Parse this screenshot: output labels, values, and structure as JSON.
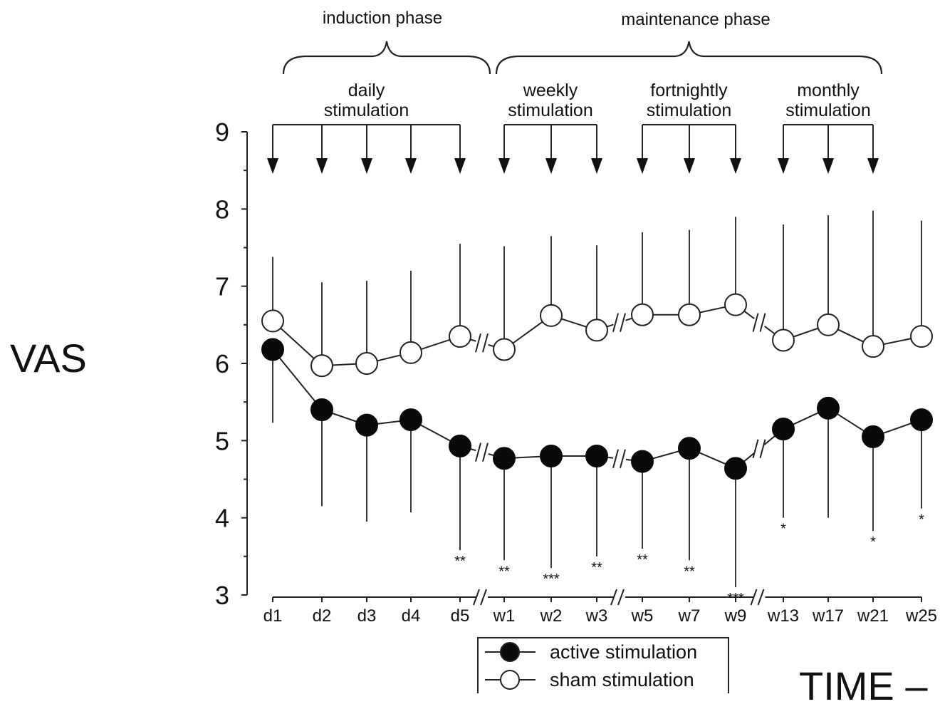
{
  "y_axis_label": "VAS",
  "x_axis_label": "TIME –",
  "phases": [
    {
      "label": "induction phase"
    },
    {
      "label": "maintenance phase"
    }
  ],
  "stimulation_groups": [
    {
      "label_line1": "daily",
      "label_line2": "stimulation",
      "timepoints": [
        "d1",
        "d2",
        "d3",
        "d4",
        "d5"
      ]
    },
    {
      "label_line1": "weekly",
      "label_line2": "stimulation",
      "timepoints": [
        "w1",
        "w2",
        "w3"
      ]
    },
    {
      "label_line1": "fortnightly",
      "label_line2": "stimulation",
      "timepoints": [
        "w5",
        "w7",
        "w9"
      ]
    },
    {
      "label_line1": "monthly",
      "label_line2": "stimulation",
      "timepoints": [
        "w13",
        "w17",
        "w21"
      ]
    }
  ],
  "legend": [
    {
      "label": "active stimulation",
      "marker": "filled-circle"
    },
    {
      "label": "sham stimulation",
      "marker": "open-circle"
    }
  ],
  "chart_data": {
    "type": "line",
    "categories": [
      "d1",
      "d2",
      "d3",
      "d4",
      "d5",
      "w1",
      "w2",
      "w3",
      "w5",
      "w7",
      "w9",
      "w13",
      "w17",
      "w21",
      "w25"
    ],
    "ylim": [
      3,
      9
    ],
    "yticks": [
      3,
      4,
      5,
      6,
      7,
      8,
      9
    ],
    "axis_breaks_after": [
      "d5",
      "w3",
      "w9"
    ],
    "series": [
      {
        "name": "sham stimulation",
        "marker": "open",
        "values": [
          6.55,
          5.97,
          6.0,
          6.14,
          6.35,
          6.18,
          6.62,
          6.43,
          6.63,
          6.63,
          6.76,
          6.3,
          6.5,
          6.22,
          6.35
        ],
        "error_upper": [
          7.38,
          7.05,
          7.07,
          7.2,
          7.55,
          7.52,
          7.65,
          7.53,
          7.7,
          7.73,
          7.9,
          7.8,
          7.92,
          7.98,
          7.85
        ]
      },
      {
        "name": "active stimulation",
        "marker": "filled",
        "values": [
          6.18,
          5.4,
          5.2,
          5.27,
          4.93,
          4.77,
          4.8,
          4.8,
          4.73,
          4.9,
          4.64,
          5.15,
          5.42,
          5.05,
          5.27
        ],
        "error_lower": [
          5.23,
          4.15,
          3.95,
          4.07,
          3.58,
          3.45,
          3.35,
          3.5,
          3.6,
          3.45,
          3.1,
          4.0,
          4.0,
          3.83,
          4.12
        ],
        "significance": [
          "",
          "",
          "",
          "",
          "**",
          "**",
          "***",
          "**",
          "**",
          "**",
          "***",
          "*",
          "",
          "*",
          "*"
        ]
      }
    ],
    "grid": false
  }
}
